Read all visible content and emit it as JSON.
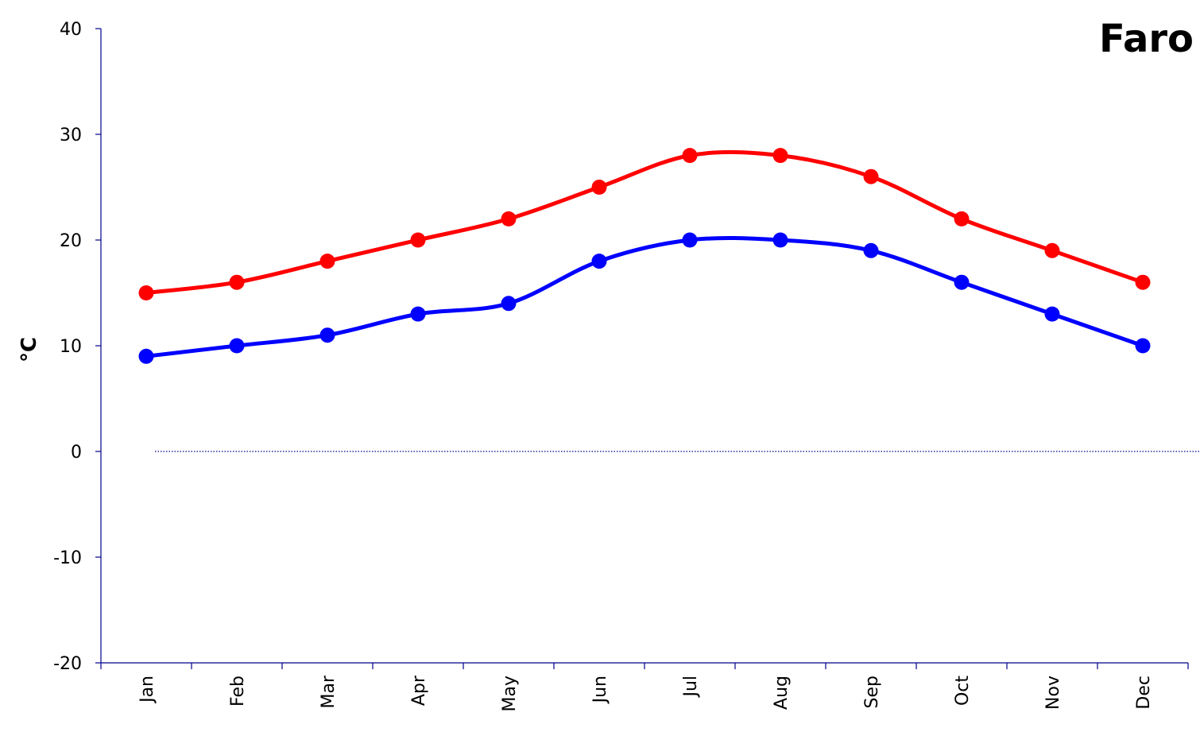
{
  "chart_data": {
    "type": "line",
    "title": "Faro",
    "ylabel": "°C",
    "xlabel": "",
    "categories": [
      "Jan",
      "Feb",
      "Mar",
      "Apr",
      "May",
      "Jun",
      "Jul",
      "Aug",
      "Sep",
      "Oct",
      "Nov",
      "Dec"
    ],
    "series": [
      {
        "color": "#ff0000",
        "values": [
          15,
          16,
          18,
          20,
          22,
          25,
          28,
          28,
          26,
          22,
          19,
          16
        ]
      },
      {
        "color": "#0000ff",
        "values": [
          9,
          10,
          11,
          13,
          14,
          18,
          20,
          20,
          19,
          16,
          13,
          10
        ]
      }
    ],
    "ylim": [
      -20,
      40
    ],
    "yticks": [
      -20,
      -10,
      0,
      10,
      20,
      30,
      40
    ],
    "grid": false,
    "zero_line": true,
    "axis_color": "#00008b",
    "zero_line_color": "#00008b",
    "smooth": true,
    "markers": "circle"
  }
}
